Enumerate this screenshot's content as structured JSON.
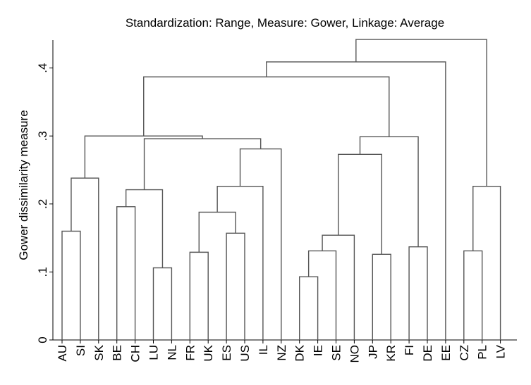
{
  "chart_data": {
    "type": "dendrogram",
    "title": "Standardization: Range, Measure: Gower, Linkage: Average",
    "ylabel": "Gower dissimilarity measure",
    "ylim": [
      0,
      0.44
    ],
    "yticks": [
      {
        "value": 0,
        "label": "0"
      },
      {
        "value": 0.1,
        "label": ".1"
      },
      {
        "value": 0.2,
        "label": ".2"
      },
      {
        "value": 0.3,
        "label": ".3"
      },
      {
        "value": 0.4,
        "label": ".4"
      }
    ],
    "leaves": [
      "AU",
      "SI",
      "SK",
      "BE",
      "CH",
      "LU",
      "NL",
      "FR",
      "UK",
      "ES",
      "US",
      "IL",
      "NZ",
      "DK",
      "IE",
      "SE",
      "NO",
      "JP",
      "KR",
      "FI",
      "DE",
      "EE",
      "CZ",
      "PL",
      "LV"
    ],
    "merges": [
      {
        "left": "AU",
        "right": "SI",
        "height": 0.16
      },
      {
        "left": "AU,SI",
        "right": "SK",
        "height": 0.238
      },
      {
        "left": "BE",
        "right": "CH",
        "height": 0.196
      },
      {
        "left": "LU",
        "right": "NL",
        "height": 0.106
      },
      {
        "left": "BE,CH",
        "right": "LU,NL",
        "height": 0.221
      },
      {
        "left": "FR",
        "right": "UK",
        "height": 0.129
      },
      {
        "left": "ES",
        "right": "US",
        "height": 0.157
      },
      {
        "left": "FR,UK",
        "right": "ES,US",
        "height": 0.188
      },
      {
        "left": "FR,UK,ES,US",
        "right": "IL",
        "height": 0.226
      },
      {
        "left": "FR,UK,ES,US,IL",
        "right": "NZ",
        "height": 0.281
      },
      {
        "left": "BE,CH,LU,NL",
        "right": "FR,UK,ES,US,IL,NZ",
        "height": 0.296
      },
      {
        "left": "AU,SI,SK",
        "right": "BE,CH,LU,NL,FR,UK,ES,US,IL,NZ",
        "height": 0.3
      },
      {
        "left": "DK",
        "right": "IE",
        "height": 0.093
      },
      {
        "left": "DK,IE",
        "right": "SE",
        "height": 0.131
      },
      {
        "left": "DK,IE,SE",
        "right": "NO",
        "height": 0.154
      },
      {
        "left": "JP",
        "right": "KR",
        "height": 0.126
      },
      {
        "left": "DK,IE,SE,NO",
        "right": "JP,KR",
        "height": 0.273
      },
      {
        "left": "FI",
        "right": "DE",
        "height": 0.137
      },
      {
        "left": "DK,IE,SE,NO,JP,KR",
        "right": "FI,DE",
        "height": 0.299
      },
      {
        "left": "AU..NZ",
        "right": "DK..DE",
        "height": 0.387
      },
      {
        "left": "AU..DE",
        "right": "EE",
        "height": 0.409
      },
      {
        "left": "CZ",
        "right": "PL",
        "height": 0.131
      },
      {
        "left": "CZ,PL",
        "right": "LV",
        "height": 0.226
      },
      {
        "left": "AU..EE",
        "right": "CZ,PL,LV",
        "height": 0.442
      }
    ]
  }
}
